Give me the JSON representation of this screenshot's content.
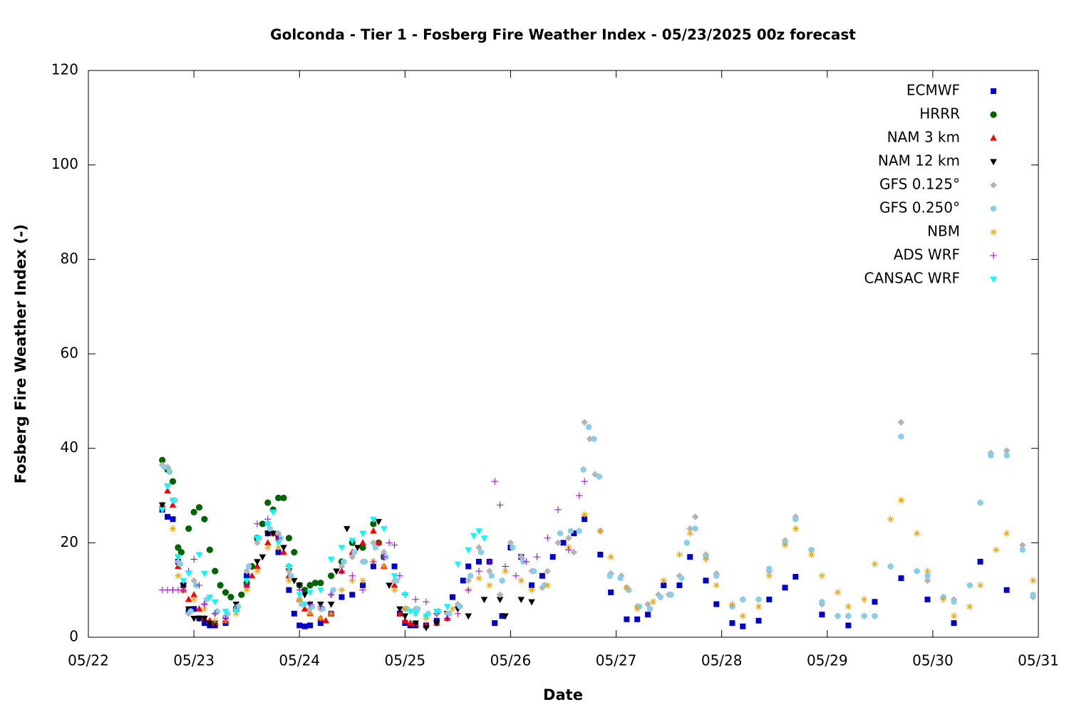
{
  "chart_data": {
    "type": "scatter",
    "title": "Golconda - Tier 1 - Fosberg Fire Weather Index - 05/23/2025 00z forecast",
    "x_label": "Date",
    "y_label": "Fosberg Fire Weather Index (-)",
    "xlim": [
      0,
      9
    ],
    "xticks": [
      {
        "value": 0,
        "label": "05/22"
      },
      {
        "value": 1,
        "label": "05/23"
      },
      {
        "value": 2,
        "label": "05/24"
      },
      {
        "value": 3,
        "label": "05/25"
      },
      {
        "value": 4,
        "label": "05/26"
      },
      {
        "value": 5,
        "label": "05/27"
      },
      {
        "value": 6,
        "label": "05/28"
      },
      {
        "value": 7,
        "label": "05/29"
      },
      {
        "value": 8,
        "label": "05/30"
      },
      {
        "value": 9,
        "label": "05/31"
      }
    ],
    "ylim": [
      0,
      120
    ],
    "yticks": [
      0,
      20,
      40,
      60,
      80,
      100,
      120
    ],
    "grid": false,
    "legend": "top-right",
    "series": [
      {
        "name": "ECMWF",
        "color": "#0000cd",
        "marker": "square",
        "x": [
          0.7,
          0.75,
          0.8,
          0.85,
          0.9,
          0.95,
          1.0,
          1.05,
          1.1,
          1.15,
          1.2,
          1.3,
          1.4,
          1.5,
          1.6,
          1.7,
          1.8,
          1.9,
          1.95,
          2.0,
          2.05,
          2.1,
          2.2,
          2.3,
          2.4,
          2.5,
          2.6,
          2.7,
          2.8,
          2.9,
          2.95,
          3.0,
          3.05,
          3.1,
          3.2,
          3.3,
          3.45,
          3.55,
          3.6,
          3.7,
          3.8,
          3.85,
          3.92,
          4.0,
          4.1,
          4.2,
          4.3,
          4.4,
          4.5,
          4.6,
          4.7,
          4.85,
          4.95,
          5.1,
          5.2,
          5.3,
          5.45,
          5.6,
          5.7,
          5.85,
          5.95,
          6.1,
          6.2,
          6.35,
          6.45,
          6.6,
          6.7,
          6.95,
          7.2,
          7.45,
          7.7,
          7.95,
          8.2,
          8.45,
          8.7
        ],
        "values": [
          27,
          25.5,
          25,
          16,
          11,
          5.5,
          6,
          4,
          3,
          2.5,
          2.5,
          3,
          6,
          13,
          21,
          22,
          18,
          10,
          5,
          2.5,
          2.3,
          2.5,
          3,
          5,
          8.5,
          9,
          11,
          15,
          17,
          15,
          5,
          3,
          2.5,
          2.5,
          2.5,
          3.5,
          8.5,
          12,
          15,
          16,
          16,
          3,
          4.5,
          19,
          17,
          11,
          13,
          17,
          20,
          22,
          25,
          17.5,
          9.5,
          3.8,
          3.8,
          4.8,
          11,
          11,
          17,
          12,
          7,
          3,
          2.3,
          3.5,
          8,
          10.5,
          12.8,
          4.8,
          2.5,
          7.5,
          12.5,
          8,
          3,
          16,
          10
        ]
      },
      {
        "name": "HRRR",
        "color": "#006400",
        "marker": "circle",
        "x": [
          0.7,
          0.75,
          0.8,
          0.85,
          0.88,
          0.95,
          1.0,
          1.05,
          1.1,
          1.15,
          1.2,
          1.25,
          1.3,
          1.35,
          1.4,
          1.45,
          1.5,
          1.55,
          1.6,
          1.65,
          1.7,
          1.75,
          1.8,
          1.85,
          1.9,
          1.95,
          2.0,
          2.05,
          2.1,
          2.15,
          2.2,
          2.3,
          2.4,
          2.5,
          2.6,
          2.7,
          2.75,
          2.8
        ],
        "values": [
          37.5,
          35.5,
          33,
          19,
          18,
          23,
          26.5,
          27.5,
          25,
          18.5,
          14,
          11,
          9.5,
          8.5,
          6,
          9,
          11.5,
          15,
          21,
          24,
          28.5,
          27,
          29.5,
          29.5,
          21,
          18,
          11,
          10,
          11,
          11.5,
          11.5,
          13,
          16,
          20,
          19,
          24,
          20,
          17
        ]
      },
      {
        "name": "NAM 3 km",
        "color": "#ff0000",
        "marker": "triangle-up",
        "x": [
          0.7,
          0.75,
          0.8,
          0.85,
          0.9,
          0.95,
          1.0,
          1.05,
          1.1,
          1.15,
          1.2,
          1.3,
          1.4,
          1.5,
          1.55,
          1.6,
          1.7,
          1.75,
          1.8,
          1.85,
          1.9,
          2.0,
          2.05,
          2.1,
          2.2,
          2.25,
          2.3,
          2.4,
          2.5,
          2.6,
          2.7,
          2.75,
          2.8,
          2.9,
          2.95,
          3.0,
          3.05,
          3.1,
          3.2,
          3.3,
          3.4
        ],
        "values": [
          28,
          31,
          28,
          15,
          10,
          8,
          9,
          6,
          4,
          3.5,
          3,
          3.5,
          6,
          11,
          13,
          15,
          20,
          22,
          21,
          18,
          13,
          8,
          6,
          5,
          4,
          3.5,
          5,
          14,
          18,
          20,
          22.5,
          20,
          15,
          11,
          5,
          3.5,
          3,
          2.8,
          2.5,
          3,
          4
        ]
      },
      {
        "name": "NAM 12 km",
        "color": "#000000",
        "marker": "triangle-down",
        "x": [
          0.7,
          0.75,
          0.85,
          0.9,
          0.95,
          1.0,
          1.05,
          1.1,
          1.15,
          1.2,
          1.3,
          1.4,
          1.5,
          1.6,
          1.65,
          1.7,
          1.75,
          1.8,
          1.85,
          1.9,
          1.95,
          2.0,
          2.05,
          2.1,
          2.2,
          2.3,
          2.35,
          2.45,
          2.55,
          2.6,
          2.75,
          2.85,
          2.95,
          3.0,
          3.1,
          3.2,
          3.3,
          3.4,
          3.5,
          3.6,
          3.75,
          3.9,
          3.95,
          4.1,
          4.2
        ],
        "values": [
          28,
          32,
          17,
          11,
          6,
          4,
          4,
          4,
          3,
          3,
          4,
          7,
          12,
          16,
          17,
          22,
          22,
          21,
          19,
          14,
          12,
          11,
          9,
          7,
          7,
          7,
          14,
          23,
          19,
          22,
          24.5,
          11,
          6,
          4.5,
          3,
          2,
          3,
          5,
          6,
          4.5,
          8,
          8,
          4.5,
          8,
          7.5
        ]
      },
      {
        "name": "GFS 0.125°",
        "color": "#b4b4b4",
        "marker": "diamond",
        "x": [
          0.7,
          0.75,
          0.8,
          0.85,
          0.95,
          1.0,
          1.1,
          1.2,
          1.3,
          1.4,
          1.5,
          1.6,
          1.7,
          1.8,
          1.9,
          2.0,
          2.1,
          2.2,
          2.3,
          2.4,
          2.5,
          2.6,
          2.7,
          2.8,
          2.9,
          3.0,
          3.1,
          3.2,
          3.3,
          3.4,
          3.5,
          3.6,
          3.7,
          3.8,
          3.9,
          4.0,
          4.1,
          4.2,
          4.3,
          4.35,
          4.45,
          4.55,
          4.6,
          4.7,
          4.75,
          4.8,
          4.85,
          4.95,
          5.05,
          5.1,
          5.2,
          5.3,
          5.4,
          5.5,
          5.6,
          5.7,
          5.75,
          5.85,
          5.95,
          6.1,
          6.2,
          6.35,
          6.45,
          6.6,
          6.7,
          6.85,
          6.95,
          7.1,
          7.2,
          7.35,
          7.45,
          7.6,
          7.7,
          7.85,
          7.95,
          8.1,
          8.2,
          8.35,
          8.45,
          8.55,
          8.7,
          8.85,
          8.95
        ],
        "values": [
          36.5,
          36,
          29,
          16,
          5,
          12,
          7,
          5,
          4.5,
          6,
          14,
          20,
          24,
          22,
          14,
          8,
          6,
          6,
          9,
          15,
          17,
          16,
          20,
          18,
          12,
          6,
          6,
          4.5,
          5,
          5,
          7,
          12,
          19,
          14,
          9,
          20,
          17,
          14,
          10.5,
          14,
          20,
          21,
          18,
          45.5,
          42,
          34.5,
          22.5,
          13.5,
          13,
          10.5,
          6.5,
          7,
          9,
          9,
          13,
          23,
          25.5,
          17.5,
          13.5,
          6.5,
          8,
          8,
          14,
          20.5,
          25.5,
          18.5,
          7,
          4.5,
          4.5,
          4.5,
          4.5,
          15,
          45.5,
          14,
          12,
          8.5,
          8,
          11,
          28.5,
          39,
          39.5,
          19.5,
          8.5
        ]
      },
      {
        "name": "GFS 0.250°",
        "color": "#87ceeb",
        "marker": "hexagon",
        "x": [
          0.72,
          0.77,
          0.82,
          0.87,
          0.97,
          1.02,
          1.12,
          1.22,
          1.32,
          1.42,
          1.52,
          1.62,
          1.72,
          1.82,
          1.92,
          2.02,
          2.12,
          2.22,
          2.32,
          2.42,
          2.52,
          2.62,
          2.72,
          2.82,
          2.92,
          3.02,
          3.12,
          3.22,
          3.32,
          3.42,
          3.52,
          3.62,
          3.72,
          3.82,
          3.92,
          4.02,
          4.12,
          4.22,
          4.32,
          4.47,
          4.57,
          4.65,
          4.69,
          4.74,
          4.79,
          4.84,
          4.94,
          5.04,
          5.12,
          5.22,
          5.32,
          5.42,
          5.52,
          5.62,
          5.67,
          5.75,
          5.85,
          5.95,
          6.1,
          6.2,
          6.35,
          6.45,
          6.6,
          6.7,
          6.85,
          6.95,
          7.1,
          7.2,
          7.35,
          7.45,
          7.6,
          7.7,
          7.85,
          7.95,
          8.1,
          8.2,
          8.35,
          8.45,
          8.55,
          8.7,
          8.85,
          8.95
        ],
        "values": [
          36,
          35,
          29,
          15.5,
          5.5,
          11,
          8,
          5.5,
          5,
          6.5,
          15,
          21,
          23,
          21,
          13,
          7,
          6.5,
          6,
          10,
          16,
          18,
          16,
          19,
          17,
          12,
          6,
          6,
          5,
          5.5,
          5,
          6.5,
          13,
          18,
          13,
          12,
          19,
          16,
          14,
          11,
          22,
          22.5,
          22.5,
          35.5,
          44.5,
          42,
          34,
          13,
          12.5,
          10,
          6.5,
          6,
          8.5,
          9,
          12.5,
          20,
          23,
          17,
          13,
          6.5,
          8,
          8,
          14.5,
          20,
          25,
          18.5,
          7.5,
          4.5,
          4.5,
          4.5,
          4.5,
          15,
          42.5,
          14,
          13,
          8.5,
          7.5,
          11,
          28.5,
          38.5,
          38.5,
          18.5,
          9
        ]
      },
      {
        "name": "NBM",
        "color": "#f0a000",
        "marker": "asterisk",
        "x": [
          0.8,
          0.85,
          0.9,
          1.0,
          1.1,
          1.2,
          1.3,
          1.4,
          1.5,
          1.6,
          1.7,
          1.8,
          1.9,
          2.0,
          2.1,
          2.2,
          2.3,
          2.4,
          2.5,
          2.6,
          2.7,
          2.8,
          2.9,
          3.0,
          3.1,
          3.2,
          3.3,
          3.45,
          3.6,
          3.7,
          3.8,
          3.95,
          4.1,
          4.2,
          4.35,
          4.55,
          4.7,
          4.85,
          4.95,
          5.1,
          5.2,
          5.35,
          5.45,
          5.6,
          5.7,
          5.85,
          5.95,
          6.1,
          6.2,
          6.35,
          6.45,
          6.6,
          6.7,
          6.85,
          6.95,
          7.1,
          7.2,
          7.35,
          7.45,
          7.6,
          7.7,
          7.85,
          7.95,
          8.1,
          8.2,
          8.35,
          8.45,
          8.6,
          8.7,
          8.95
        ],
        "values": [
          23,
          13,
          10,
          8,
          6,
          3.5,
          3.5,
          5,
          10,
          14,
          19,
          19,
          12,
          8,
          5,
          4,
          5,
          10,
          12,
          12,
          16,
          15,
          10,
          6,
          5,
          4,
          5,
          6,
          10,
          12.5,
          11,
          14,
          12,
          10,
          11,
          19,
          26,
          22.5,
          17,
          10.5,
          6,
          7.5,
          12,
          17.5,
          22,
          16.5,
          11,
          7,
          4.5,
          6.5,
          13,
          19.5,
          23,
          17.5,
          13,
          9.5,
          6.5,
          8,
          15.5,
          25,
          29,
          22,
          14,
          8,
          4.5,
          6.5,
          11,
          18.5,
          22,
          12
        ]
      },
      {
        "name": "ADS WRF",
        "color": "#9400d3",
        "marker": "plus",
        "x": [
          0.7,
          0.75,
          0.8,
          0.85,
          0.9,
          0.95,
          1.0,
          1.05,
          1.1,
          1.2,
          1.3,
          1.4,
          1.5,
          1.6,
          1.7,
          1.8,
          1.9,
          2.0,
          2.1,
          2.2,
          2.3,
          2.4,
          2.5,
          2.6,
          2.7,
          2.8,
          2.85,
          2.9,
          2.95,
          3.0,
          3.1,
          3.2,
          3.3,
          3.4,
          3.5,
          3.6,
          3.7,
          3.8,
          3.85,
          3.9,
          3.95,
          4.05,
          4.15,
          4.25,
          4.35,
          4.45,
          4.55,
          4.65,
          4.7
        ],
        "values": [
          10,
          10,
          10,
          10,
          10,
          14,
          16.5,
          11,
          7,
          5,
          4,
          6,
          11,
          24,
          25,
          21,
          15,
          10,
          7,
          6.5,
          9,
          14,
          13,
          10,
          16,
          17,
          20,
          19.5,
          13,
          9,
          8,
          7.5,
          5,
          4,
          5,
          10,
          14,
          16,
          33,
          28,
          15,
          13,
          16,
          17,
          21,
          27,
          18.5,
          30,
          33
        ]
      },
      {
        "name": "CANSAC WRF",
        "color": "#00ffff",
        "marker": "triangle-down",
        "x": [
          0.7,
          0.75,
          0.8,
          0.85,
          0.9,
          0.95,
          1.05,
          1.1,
          1.15,
          1.2,
          1.3,
          1.4,
          1.5,
          1.6,
          1.7,
          1.75,
          1.8,
          1.9,
          2.0,
          2.05,
          2.1,
          2.2,
          2.3,
          2.4,
          2.5,
          2.6,
          2.7,
          2.8,
          2.9,
          3.0,
          3.05,
          3.1,
          3.2,
          3.3,
          3.4,
          3.5,
          3.6,
          3.65,
          3.7,
          3.75
        ],
        "values": [
          27,
          32,
          29,
          17,
          12,
          13.5,
          17.5,
          13.5,
          8.5,
          7.5,
          5.5,
          5.5,
          12,
          21,
          24,
          26.5,
          20,
          15,
          9,
          7,
          9.5,
          10,
          16.5,
          19,
          20.5,
          22,
          25,
          23,
          13,
          9,
          5.5,
          5,
          4.5,
          5.5,
          6.5,
          15.5,
          18.5,
          21.5,
          22.5,
          21
        ]
      }
    ]
  }
}
